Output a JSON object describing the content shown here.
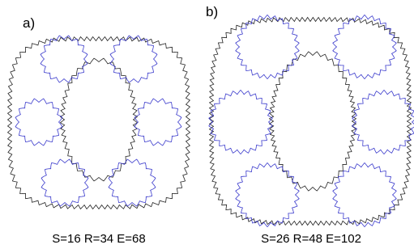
{
  "panels": [
    {
      "label": "a)",
      "caption": "S=16 R=34 E=68"
    },
    {
      "label": "b)",
      "caption": "S=26 R=48 E=102"
    }
  ]
}
